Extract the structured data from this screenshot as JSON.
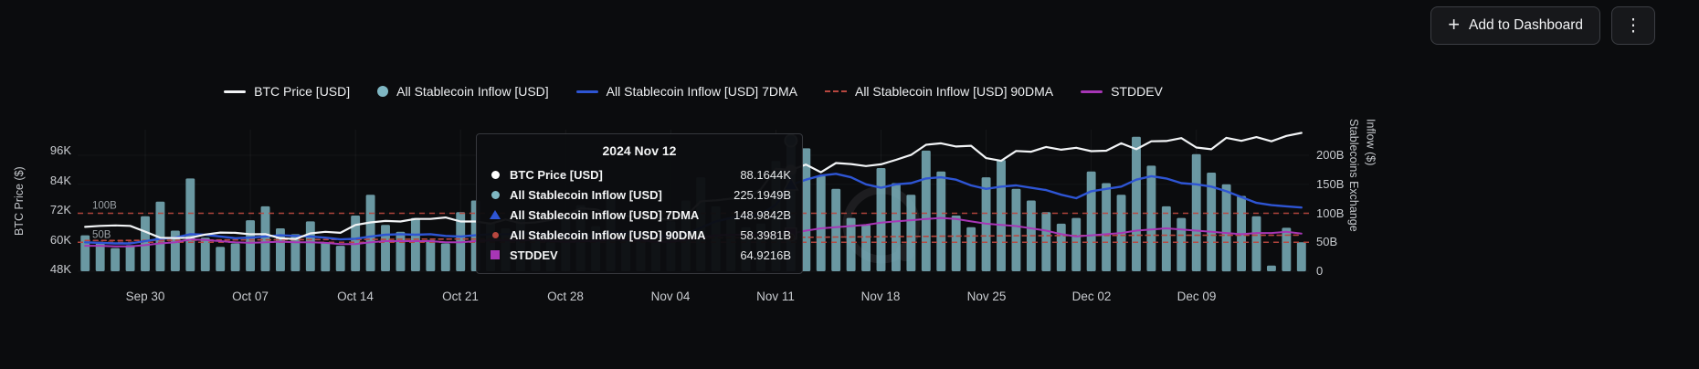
{
  "theme": {
    "background": "#0b0c0e",
    "panel": "#0e0f12",
    "tick_text": "#c9ccd0",
    "annotation_text": "#9aa0a5"
  },
  "header": {
    "add_to_dashboard_label": "Add to Dashboard",
    "plus_icon": "+",
    "kebab_icon": "⋮"
  },
  "legend": {
    "items": [
      {
        "label": "BTC Price [USD]",
        "marker": "line",
        "color": "#f2f4f6"
      },
      {
        "label": "All Stablecoin Inflow [USD]",
        "marker": "circle",
        "color": "#7fb7c3"
      },
      {
        "label": "All Stablecoin Inflow [USD] 7DMA",
        "marker": "line",
        "color": "#2e55d4"
      },
      {
        "label": "All Stablecoin Inflow [USD] 90DMA",
        "marker": "dash",
        "color": "#b8473f"
      },
      {
        "label": "STDDEV",
        "marker": "line",
        "color": "#a736b6"
      }
    ]
  },
  "axes": {
    "left_title": "BTC Price ($)",
    "right_title_line1": "Stablecoins Exchange",
    "right_title_line2": "Inflow ($)"
  },
  "tooltip": {
    "title": "2024 Nov 12",
    "rows": [
      {
        "label": "BTC Price [USD]",
        "value": "88.1644K",
        "marker": "circle",
        "color": "#ffffff"
      },
      {
        "label": "All Stablecoin Inflow [USD]",
        "value": "225.1949B",
        "marker": "circle",
        "color": "#7fb7c3"
      },
      {
        "label": "All Stablecoin Inflow [USD] 7DMA",
        "value": "148.9842B",
        "marker": "triangle",
        "color": "#2e55d4"
      },
      {
        "label": "All Stablecoin Inflow [USD] 90DMA",
        "value": "58.3981B",
        "marker": "circle-sm",
        "color": "#b8473f"
      },
      {
        "label": "STDDEV",
        "value": "64.9216B",
        "marker": "square",
        "color": "#a736b6"
      }
    ]
  },
  "chart_data": {
    "type": "bar+line dual-axis time series",
    "hover_index": 47,
    "hover_date": "2024 Nov 12",
    "left_axis": {
      "title": "BTC Price ($)",
      "unit": "K",
      "range": [
        45,
        106
      ],
      "ticks": [
        {
          "label": "96K",
          "value": 96
        },
        {
          "label": "84K",
          "value": 84
        },
        {
          "label": "72K",
          "value": 72
        },
        {
          "label": "60K",
          "value": 60
        },
        {
          "label": "48K",
          "value": 48
        }
      ]
    },
    "right_axis": {
      "title": "Stablecoins Exchange Inflow ($)",
      "unit": "B",
      "range": [
        0,
        250
      ],
      "ticks": [
        {
          "label": "200B",
          "value": 200
        },
        {
          "label": "150B",
          "value": 150
        },
        {
          "label": "100B",
          "value": 100
        },
        {
          "label": "50B",
          "value": 50
        },
        {
          "label": "0",
          "value": 0
        }
      ]
    },
    "x_ticks": [
      {
        "label": "Sep 30",
        "index": 4
      },
      {
        "label": "Oct 07",
        "index": 11
      },
      {
        "label": "Oct 14",
        "index": 18
      },
      {
        "label": "Oct 21",
        "index": 25
      },
      {
        "label": "Oct 28",
        "index": 32
      },
      {
        "label": "Nov 04",
        "index": 39
      },
      {
        "label": "Nov 11",
        "index": 46
      },
      {
        "label": "Nov 18",
        "index": 53
      },
      {
        "label": "Nov 25",
        "index": 60
      },
      {
        "label": "Dec 02",
        "index": 67
      },
      {
        "label": "Dec 09",
        "index": 74
      }
    ],
    "threshold_lines": [
      {
        "label": "100B",
        "value": 100
      },
      {
        "label": "50B",
        "value": 50
      }
    ],
    "series": [
      {
        "name": "All Stablecoin Inflow [USD]",
        "type": "bar",
        "axis": "right",
        "color": "#7fb7c3",
        "values": [
          62,
          48,
          40,
          45,
          95,
          120,
          70,
          160,
          58,
          42,
          48,
          88,
          112,
          74,
          64,
          86,
          50,
          44,
          96,
          132,
          80,
          68,
          92,
          54,
          48,
          102,
          122,
          84,
          74,
          96,
          60,
          50,
          92,
          114,
          78,
          130,
          70,
          56,
          50,
          86,
          122,
          162,
          112,
          92,
          76,
          82,
          190,
          225.1949,
          212,
          165,
          142,
          92,
          80,
          178,
          152,
          132,
          208,
          172,
          96,
          76,
          162,
          192,
          142,
          122,
          102,
          82,
          92,
          172,
          152,
          132,
          232,
          182,
          112,
          92,
          202,
          170,
          150,
          130,
          95,
          10,
          75,
          50
        ]
      },
      {
        "name": "BTC Price [USD]",
        "type": "line",
        "axis": "left",
        "color": "#f2f4f6",
        "width": 2.2,
        "values": [
          65.2,
          65.6,
          65.8,
          65.6,
          63.3,
          60.8,
          60.7,
          60.8,
          62.1,
          62.9,
          62.8,
          62.2,
          62.3,
          60.6,
          60.3,
          62.6,
          63.2,
          62.8,
          66.0,
          67.0,
          67.6,
          67.4,
          68.4,
          68.4,
          69.0,
          67.4,
          67.4,
          66.5,
          68.2,
          66.7,
          67.0,
          68.0,
          69.9,
          72.7,
          72.3,
          70.2,
          69.5,
          69.4,
          68.7,
          67.9,
          69.4,
          75.6,
          75.9,
          76.6,
          76.7,
          80.4,
          88.7,
          88.1644,
          90.4,
          87.3,
          91.0,
          90.6,
          89.8,
          90.5,
          92.3,
          94.3,
          98.4,
          99.0,
          97.7,
          98.0,
          93.0,
          91.9,
          95.9,
          95.6,
          97.5,
          96.4,
          97.2,
          95.8,
          96.0,
          99.0,
          96.6,
          99.8,
          99.9,
          101.1,
          97.3,
          96.6,
          101.2,
          100.0,
          101.5,
          99.8,
          102.0,
          103.2
        ]
      },
      {
        "name": "All Stablecoin Inflow [USD] 7DMA",
        "type": "line",
        "axis": "right",
        "color": "#2e55d4",
        "width": 2.4,
        "values": [
          50,
          49,
          48,
          48,
          52,
          56,
          58,
          64,
          63,
          60,
          57,
          58,
          60,
          62,
          61,
          60,
          58,
          55,
          56,
          60,
          63,
          64,
          63,
          64,
          61,
          60,
          62,
          64,
          64,
          65,
          66,
          63,
          61,
          63,
          62,
          67,
          66,
          64,
          61,
          60,
          64,
          75,
          86,
          92,
          95,
          98,
          115,
          148.9842,
          158,
          165,
          168,
          162,
          150,
          144,
          150,
          152,
          160,
          162,
          158,
          148,
          142,
          146,
          148,
          144,
          140,
          132,
          126,
          138,
          142,
          146,
          158,
          164,
          160,
          152,
          150,
          146,
          138,
          128,
          118,
          114,
          112,
          110
        ]
      },
      {
        "name": "All Stablecoin Inflow [USD] 90DMA",
        "type": "line",
        "axis": "right",
        "color": "#b8473f",
        "width": 1.6,
        "dash": true,
        "values": [
          53,
          53,
          53,
          53.2,
          53.2,
          53.4,
          53.4,
          53.6,
          53.8,
          54,
          54,
          54.2,
          54.2,
          54.4,
          54.4,
          54.6,
          54.6,
          54.8,
          54.8,
          55,
          55,
          55.2,
          55.2,
          55.4,
          55.4,
          55.6,
          55.6,
          55.8,
          55.8,
          56,
          56,
          56.2,
          56.2,
          56.4,
          56.4,
          56.6,
          56.6,
          56.8,
          56.8,
          57,
          57.2,
          57.4,
          57.6,
          57.8,
          58,
          58.1,
          58.2,
          58.3981,
          58.6,
          58.8,
          59,
          59.2,
          59.4,
          59.6,
          59.8,
          60,
          60.2,
          60.4,
          60.6,
          60.8,
          61,
          61.1,
          61.2,
          61.3,
          61.4,
          61.5,
          61.6,
          61.7,
          61.8,
          61.9,
          62,
          62,
          62,
          62,
          62,
          62,
          62,
          62,
          62,
          62,
          62.2,
          62.4
        ]
      },
      {
        "name": "STDDEV",
        "type": "line",
        "axis": "right",
        "color": "#a736b6",
        "width": 2,
        "values": [
          44,
          44,
          43,
          43,
          45,
          48,
          50,
          55,
          54,
          52,
          50,
          49,
          50,
          51,
          50,
          50,
          49,
          47,
          47,
          50,
          52,
          52,
          52,
          52,
          50,
          50,
          52,
          53,
          53,
          53,
          54,
          52,
          51,
          52,
          52,
          55,
          54,
          53,
          51,
          51,
          54,
          58,
          62,
          63,
          63,
          63,
          64,
          64.9216,
          70,
          74,
          76,
          78,
          80,
          84,
          86,
          88,
          90,
          92,
          90,
          86,
          82,
          80,
          78,
          74,
          70,
          64,
          60,
          62,
          64,
          66,
          70,
          72,
          74,
          72,
          70,
          68,
          66,
          64,
          66,
          66,
          68,
          65
        ]
      }
    ]
  }
}
